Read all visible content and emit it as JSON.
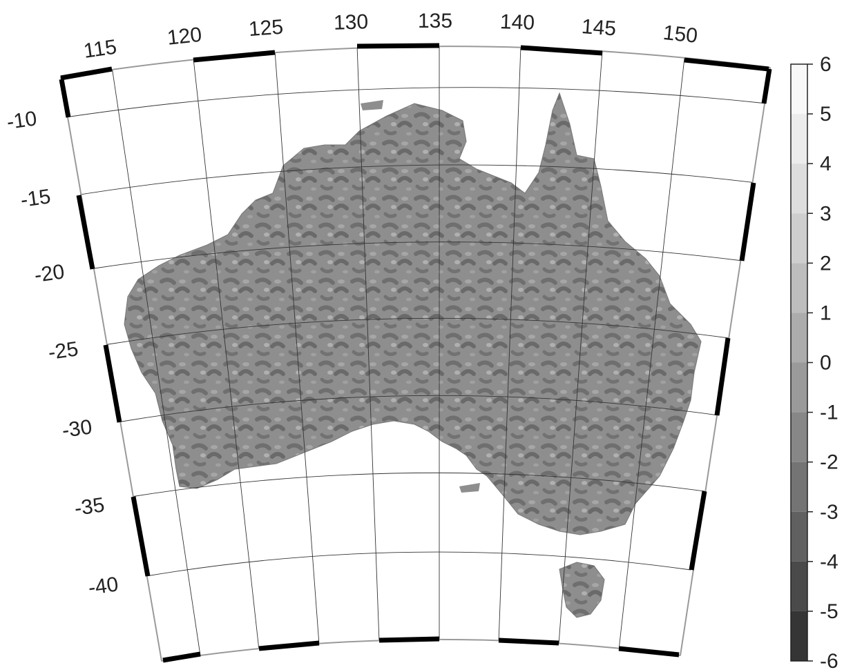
{
  "map": {
    "longitude_labels": [
      "115",
      "120",
      "125",
      "130",
      "135",
      "140",
      "145",
      "150"
    ],
    "latitude_labels": [
      "-10",
      "-15",
      "-20",
      "-25",
      "-30",
      "-35",
      "-40"
    ],
    "longitude_values": [
      115,
      120,
      125,
      130,
      135,
      140,
      145,
      150
    ],
    "latitude_values": [
      -10,
      -15,
      -20,
      -25,
      -30,
      -35,
      -40
    ],
    "land_color": "#8e8e8e"
  },
  "colorbar": {
    "labels": [
      "6",
      "5",
      "4",
      "3",
      "2",
      "1",
      "0",
      "-1",
      "-2",
      "-3",
      "-4",
      "-5",
      "-6"
    ],
    "values": [
      6,
      5,
      4,
      3,
      2,
      1,
      0,
      -1,
      -2,
      -3,
      -4,
      -5,
      -6
    ],
    "colors": [
      "#f8f8f8",
      "#ececec",
      "#dddddd",
      "#cecece",
      "#bdbdbd",
      "#acacac",
      "#9a9a9a",
      "#878787",
      "#747474",
      "#606060",
      "#4a4a4a",
      "#353535"
    ]
  }
}
